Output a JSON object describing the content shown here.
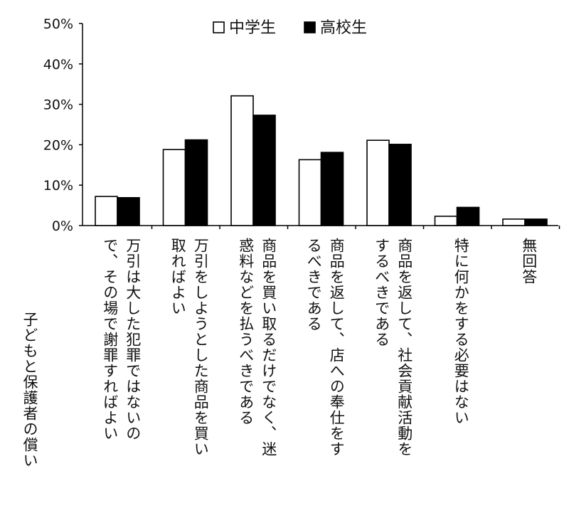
{
  "chart_data": {
    "type": "bar",
    "title": "",
    "xlabel": "",
    "ylabel": "子どもと保護者の償い",
    "ylim": [
      0,
      50
    ],
    "yticks": [
      "0%",
      "10%",
      "20%",
      "30%",
      "40%",
      "50%"
    ],
    "legend_position": "top",
    "categories": [
      "万引は大した犯罪ではないので、その場で謝罪すればよい",
      "万引をしようとした商品を買い取ればよい",
      "商品を買い取るだけでなく、迷惑料などを払うべきである",
      "商品を返して、店への奉仕をするべきである",
      "商品を返して、社会貢献活動をするべきである",
      "特に何かをする必要はない",
      "無回答"
    ],
    "category_display": [
      "万引は大した犯罪ではないの\nで、その場で謝罪すればよい",
      "万引をしようとした商品を買い\n取ればよい",
      "商品を買い取るだけでなく、迷\n惑料などを払うべきである",
      "商品を返して、店への奉仕をす\nるべきである",
      "商品を返して、社会貢献活動を\nするべきである",
      "特に何かをする必要はない",
      "無回答"
    ],
    "series": [
      {
        "name": "中学生",
        "color": "#ffffff",
        "values": [
          7.2,
          18.8,
          32.1,
          16.3,
          21.1,
          2.3,
          1.6
        ]
      },
      {
        "name": "高校生",
        "color": "#000000",
        "values": [
          6.9,
          21.2,
          27.3,
          18.1,
          20.1,
          4.5,
          1.6
        ]
      }
    ]
  }
}
